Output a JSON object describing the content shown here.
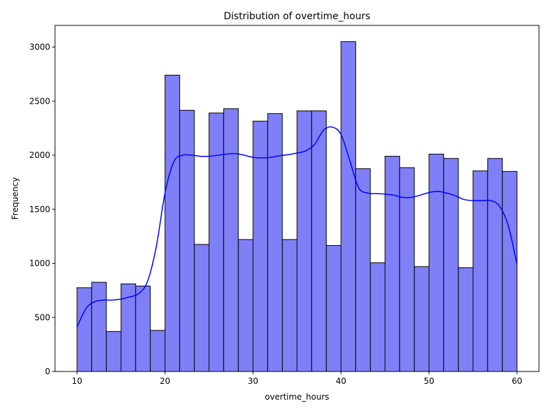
{
  "chart_data": {
    "type": "bar",
    "title": "Distribution of overtime_hours",
    "xlabel": "overtime_hours",
    "ylabel": "Frequency",
    "xlim": [
      7.5,
      62.5
    ],
    "ylim": [
      0,
      3200
    ],
    "xticks": [
      10,
      20,
      30,
      40,
      50,
      60
    ],
    "yticks": [
      0,
      500,
      1000,
      1500,
      2000,
      2500,
      3000
    ],
    "bin_start": 10,
    "bin_width": 1.6667,
    "values": [
      775,
      825,
      370,
      810,
      790,
      380,
      2740,
      2415,
      1175,
      2390,
      2430,
      1220,
      2315,
      2385,
      1220,
      2410,
      2410,
      1165,
      3050,
      1875,
      1005,
      1990,
      1885,
      970,
      2010,
      1970,
      960,
      1855,
      1970,
      1850
    ],
    "kde": {
      "x": [
        10,
        11,
        12,
        13,
        14,
        15,
        16,
        17,
        18,
        19,
        20,
        21,
        22,
        23,
        24,
        25,
        26,
        27,
        28,
        29,
        30,
        31,
        32,
        33,
        34,
        35,
        36,
        37,
        38,
        39,
        40,
        41,
        42,
        43,
        44,
        45,
        46,
        47,
        48,
        49,
        50,
        51,
        52,
        53,
        54,
        55,
        56,
        57,
        58,
        59,
        60
      ],
      "y": [
        410,
        580,
        645,
        660,
        660,
        670,
        690,
        720,
        830,
        1150,
        1650,
        1940,
        2000,
        2000,
        1990,
        1990,
        2000,
        2010,
        2015,
        2000,
        1980,
        1975,
        1980,
        1995,
        2005,
        2020,
        2040,
        2100,
        2230,
        2260,
        2190,
        1950,
        1700,
        1650,
        1645,
        1640,
        1630,
        1610,
        1610,
        1630,
        1655,
        1665,
        1650,
        1625,
        1590,
        1580,
        1580,
        1580,
        1530,
        1350,
        990
      ]
    },
    "bar_color": "#7f7ff7",
    "bar_edge_color": "#000000",
    "kde_color": "#0000ff",
    "grid": false,
    "legend": "none"
  }
}
